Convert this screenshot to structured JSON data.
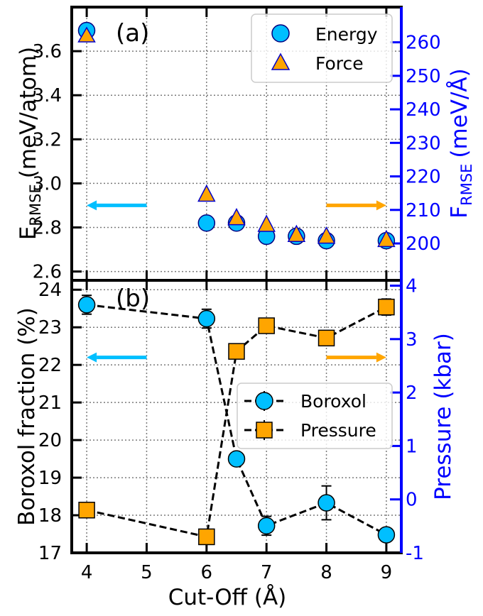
{
  "chart_data": [
    {
      "type": "scatter",
      "panel_label": "(a)",
      "xlabel": "Cut-Off (Å)",
      "ylabel": "E_RMSE (meV/atom)",
      "ylabel_main": "E",
      "ylabel_sub": "RMSE",
      "ylabel_units": "(meV/atom)",
      "y2label": "F_RMSE (meV/Å)",
      "y2label_main": "F",
      "y2label_sub": "RMSE",
      "y2label_units": "(meV/Å)",
      "xlim": [
        3.75,
        9.25
      ],
      "ylim": [
        2.56,
        3.8
      ],
      "y2lim": [
        189,
        270.5
      ],
      "xticks": [
        4,
        5,
        6,
        7,
        8,
        9
      ],
      "yticks": [
        2.6,
        2.8,
        3.0,
        3.2,
        3.4,
        3.6
      ],
      "ytick_labels": [
        "2.6",
        "2.8",
        "3.0",
        "3.2",
        "3.4",
        "3.6"
      ],
      "y2ticks": [
        200,
        210,
        220,
        230,
        240,
        250,
        260
      ],
      "y2tick_labels": [
        "200",
        "210",
        "220",
        "230",
        "240",
        "250",
        "260"
      ],
      "grid": true,
      "legend_position": "top-right",
      "series": [
        {
          "name": "Energy",
          "axis": "left",
          "marker": "circle",
          "color": "#00bfff",
          "x": [
            6,
            6.5,
            7,
            7.5,
            8,
            9
          ],
          "y": [
            2.82,
            2.82,
            2.76,
            2.76,
            2.74,
            2.74
          ]
        },
        {
          "name": "Force",
          "axis": "right",
          "marker": "triangle",
          "color": "#ffa500",
          "x": [
            6,
            6.5,
            7,
            7.5,
            8,
            9
          ],
          "y": [
            214.5,
            207.5,
            205.5,
            202.5,
            202,
            201
          ]
        }
      ],
      "annotations": [
        {
          "type": "arrow",
          "direction": "left",
          "color": "#00bfff",
          "x_from": 5,
          "x_to": 4,
          "y": 2.9
        },
        {
          "type": "arrow",
          "direction": "right",
          "color": "#ffa500",
          "x_from": 8,
          "x_to": 9,
          "y": 2.9
        }
      ]
    },
    {
      "type": "line",
      "panel_label": "(b)",
      "xlabel": "Cut-Off (Å)",
      "ylabel": "Boroxol fraction (%)",
      "y2label": "Pressure (kbar)",
      "xlim": [
        3.75,
        9.25
      ],
      "ylim": [
        17,
        24.25
      ],
      "y2lim": [
        -1,
        4.1
      ],
      "xticks": [
        4,
        5,
        6,
        7,
        8,
        9
      ],
      "xtick_labels": [
        "4",
        "5",
        "6",
        "7",
        "8",
        "9"
      ],
      "yticks": [
        17,
        18,
        19,
        20,
        21,
        22,
        23,
        24
      ],
      "ytick_labels": [
        "17",
        "18",
        "19",
        "20",
        "21",
        "22",
        "23",
        "24"
      ],
      "y2ticks": [
        -1,
        0,
        1,
        2,
        3,
        4
      ],
      "y2tick_labels": [
        "-1",
        "0",
        "1",
        "2",
        "3",
        "4"
      ],
      "grid": true,
      "legend_position": "center-right",
      "series": [
        {
          "name": "Boroxol",
          "axis": "left",
          "marker": "circle",
          "color": "#00bfff",
          "linestyle": "dashed",
          "x": [
            4,
            6,
            6.5,
            7,
            8,
            9
          ],
          "y": [
            23.6,
            23.23,
            19.5,
            17.72,
            18.33,
            17.48
          ],
          "yerr": [
            0.25,
            0.25,
            0.12,
            0.25,
            0.45,
            0.1
          ]
        },
        {
          "name": "Pressure",
          "axis": "right",
          "marker": "square",
          "color": "#ffa500",
          "linestyle": "dashed",
          "x": [
            4,
            6,
            6.5,
            7,
            8,
            9
          ],
          "y": [
            -0.2,
            -0.7,
            2.77,
            3.25,
            3.02,
            3.6
          ],
          "yerr": [
            0.05,
            0.05,
            0.12,
            0.1,
            0.1,
            0.15
          ]
        }
      ],
      "annotations": [
        {
          "type": "arrow",
          "direction": "left",
          "color": "#00bfff",
          "x_from": 5,
          "x_to": 4,
          "y": 22.2
        },
        {
          "type": "arrow",
          "direction": "right",
          "color": "#ffa500",
          "x_from": 8,
          "x_to": 9,
          "y": 22.2
        }
      ]
    }
  ]
}
